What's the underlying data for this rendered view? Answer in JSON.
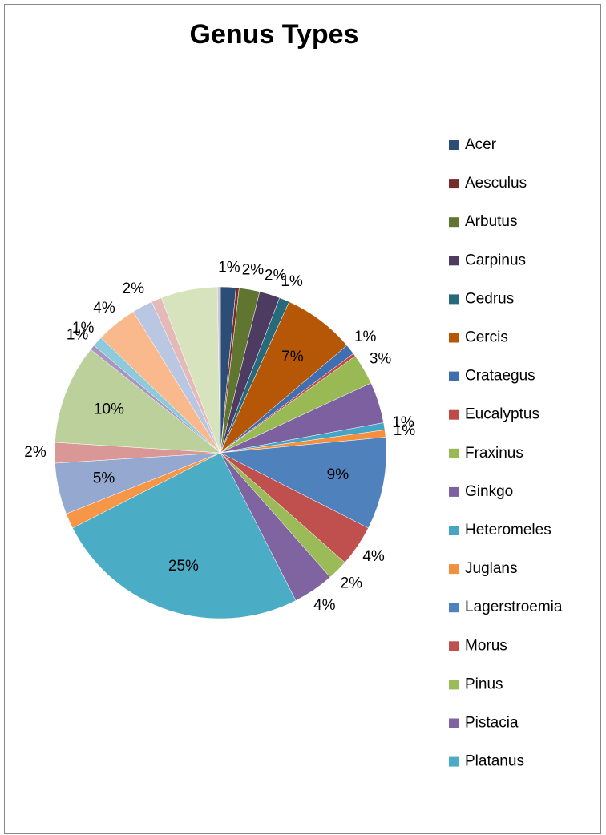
{
  "chart_data": {
    "type": "pie",
    "title": "Genus Types",
    "categories": [
      "Acer",
      "Aesculus",
      "Arbutus",
      "Carpinus",
      "Cedrus",
      "Cercis",
      "Crataegus",
      "Eucalyptus",
      "Fraxinus",
      "Ginkgo",
      "Heteromeles",
      "Juglans",
      "Lagerstroemia",
      "Morus",
      "Pinus",
      "Pistacia",
      "Platanus",
      null,
      null,
      null,
      null,
      null,
      null,
      null,
      null,
      null,
      null,
      null
    ],
    "values": [
      1.5,
      0.3,
      2,
      2,
      1,
      7,
      1,
      0.3,
      3,
      4,
      0.7,
      0.7,
      9,
      4,
      2,
      4,
      25,
      1.5,
      5,
      2,
      9.7,
      0.5,
      1,
      4,
      2,
      1,
      5.5,
      0.3
    ],
    "value_labels": [
      "1%",
      null,
      "2%",
      "2%",
      "1%",
      "7%",
      "1%",
      null,
      "3%",
      null,
      "1%",
      "1%",
      "9%",
      "4%",
      "2%",
      "4%",
      "25%",
      null,
      "5%",
      "2%",
      "10%",
      "1%",
      "1%",
      "4%",
      "2%",
      null,
      null,
      null
    ],
    "colors": [
      "#2c4d75",
      "#772c2a",
      "#5f7530",
      "#4d3b62",
      "#276a7c",
      "#b65708",
      "#3f6fb0",
      "#be4b48",
      "#98b954",
      "#7d60a0",
      "#46a5c4",
      "#f38f3e",
      "#4f81bd",
      "#c0504d",
      "#9bbb59",
      "#8064a2",
      "#4bacc6",
      "#f79646",
      "#95a9d0",
      "#d99795",
      "#bbd09a",
      "#a896c0",
      "#8dcbdc",
      "#fab98c",
      "#b9c7e2",
      "#e5b9b8",
      "#d6e3bc",
      "#cdc4db"
    ],
    "legend": "right"
  }
}
